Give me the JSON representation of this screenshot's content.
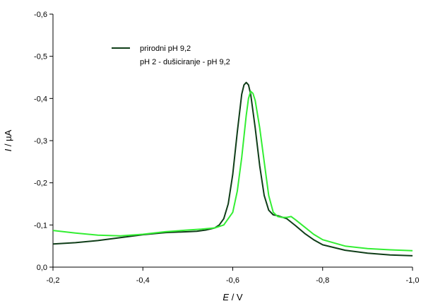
{
  "chart_data": {
    "type": "line",
    "title": "",
    "xlabel": {
      "italic": "E",
      "rest": " / V"
    },
    "ylabel": {
      "italic": "I",
      "rest": " / µA"
    },
    "xlim": [
      -0.2,
      -1.0
    ],
    "ylim": [
      0.0,
      -0.6
    ],
    "x_ticks": [
      "-0,2",
      "-0,4",
      "-0,6",
      "-0,8",
      "-1,0"
    ],
    "y_ticks": [
      "0,0",
      "-0,1",
      "-0,2",
      "-0,3",
      "-0,4",
      "-0,5",
      "-0,6"
    ],
    "x_tick_values": [
      -0.2,
      -0.4,
      -0.6,
      -0.8,
      -1.0
    ],
    "y_tick_values": [
      0.0,
      -0.1,
      -0.2,
      -0.3,
      -0.4,
      -0.5,
      -0.6
    ],
    "grid": false,
    "legend_position": "top-left",
    "series": [
      {
        "name": "prirodni pH 9,2",
        "color": "#0f3d18",
        "x": [
          -0.2,
          -0.25,
          -0.3,
          -0.35,
          -0.4,
          -0.45,
          -0.5,
          -0.52,
          -0.54,
          -0.56,
          -0.57,
          -0.58,
          -0.59,
          -0.6,
          -0.61,
          -0.62,
          -0.625,
          -0.63,
          -0.635,
          -0.64,
          -0.65,
          -0.66,
          -0.67,
          -0.68,
          -0.69,
          -0.7,
          -0.72,
          -0.74,
          -0.76,
          -0.78,
          -0.8,
          -0.85,
          -0.9,
          -0.95,
          -1.0
        ],
        "y": [
          -0.055,
          -0.058,
          -0.063,
          -0.07,
          -0.077,
          -0.082,
          -0.084,
          -0.085,
          -0.088,
          -0.093,
          -0.1,
          -0.115,
          -0.15,
          -0.22,
          -0.32,
          -0.41,
          -0.432,
          -0.438,
          -0.432,
          -0.41,
          -0.33,
          -0.24,
          -0.17,
          -0.135,
          -0.124,
          -0.122,
          -0.115,
          -0.098,
          -0.08,
          -0.065,
          -0.053,
          -0.04,
          -0.033,
          -0.029,
          -0.027
        ]
      },
      {
        "name": "pH 2 - dušiciranje - pH 9,2",
        "color": "#33ee33",
        "x": [
          -0.2,
          -0.25,
          -0.3,
          -0.35,
          -0.4,
          -0.45,
          -0.5,
          -0.53,
          -0.56,
          -0.58,
          -0.6,
          -0.61,
          -0.62,
          -0.63,
          -0.635,
          -0.64,
          -0.645,
          -0.65,
          -0.66,
          -0.67,
          -0.68,
          -0.69,
          -0.7,
          -0.71,
          -0.72,
          -0.73,
          -0.74,
          -0.76,
          -0.78,
          -0.8,
          -0.85,
          -0.9,
          -0.95,
          -1.0
        ],
        "y": [
          -0.087,
          -0.081,
          -0.076,
          -0.074,
          -0.078,
          -0.084,
          -0.088,
          -0.09,
          -0.093,
          -0.1,
          -0.13,
          -0.18,
          -0.26,
          -0.36,
          -0.4,
          -0.417,
          -0.412,
          -0.395,
          -0.33,
          -0.25,
          -0.17,
          -0.13,
          -0.12,
          -0.118,
          -0.118,
          -0.12,
          -0.112,
          -0.095,
          -0.078,
          -0.065,
          -0.05,
          -0.044,
          -0.041,
          -0.039
        ]
      }
    ]
  }
}
